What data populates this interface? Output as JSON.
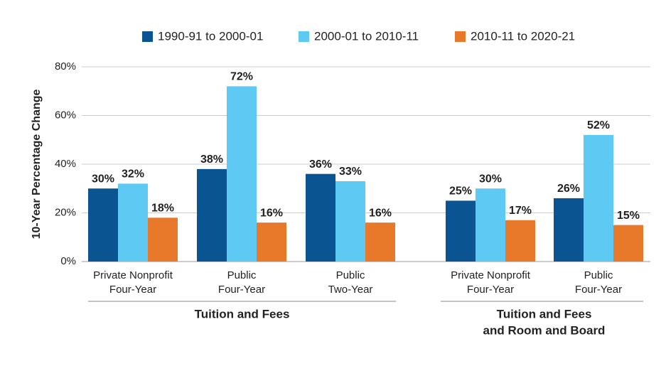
{
  "chart_data": {
    "type": "bar",
    "y_axis_label": "10-Year Percentage Change",
    "categories": [
      [
        "Private Nonprofit",
        "Four-Year"
      ],
      [
        "Public",
        "Four-Year"
      ],
      [
        "Public",
        "Two-Year"
      ],
      [
        "Private Nonprofit",
        "Four-Year"
      ],
      [
        "Public",
        "Four-Year"
      ]
    ],
    "group_labels": [
      [
        "Tuition and Fees"
      ],
      [
        "Tuition and Fees",
        "and Room and Board"
      ]
    ],
    "series": [
      {
        "name": "1990-91 to 2000-01",
        "color": "#0b5492",
        "values": [
          30,
          38,
          36,
          25,
          26
        ],
        "value_labels": [
          "30%",
          "38%",
          "36%",
          "25%",
          "26%"
        ]
      },
      {
        "name": "2000-01 to 2010-11",
        "color": "#5ec9f2",
        "values": [
          32,
          72,
          33,
          30,
          52
        ],
        "value_labels": [
          "32%",
          "72%",
          "33%",
          "30%",
          "52%"
        ]
      },
      {
        "name": "2010-11 to 2020-21",
        "color": "#e8792a",
        "values": [
          18,
          16,
          16,
          17,
          15
        ],
        "value_labels": [
          "18%",
          "16%",
          "16%",
          "17%",
          "15%"
        ]
      }
    ],
    "ylim": [
      0,
      80
    ],
    "yticks": [
      {
        "value": 0,
        "label": "0%"
      },
      {
        "value": 20,
        "label": "20%"
      },
      {
        "value": 40,
        "label": "40%"
      },
      {
        "value": 60,
        "label": "60%"
      },
      {
        "value": 80,
        "label": "80%"
      }
    ],
    "grid": true,
    "legend": "top"
  }
}
